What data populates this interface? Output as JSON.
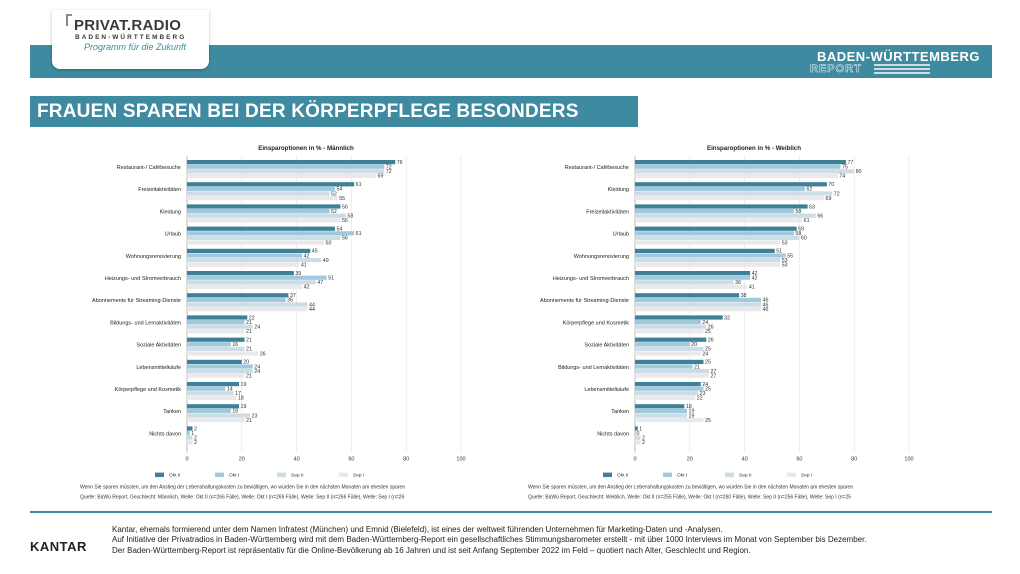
{
  "header": {
    "logo_title": "PRIVAT.RADIO",
    "logo_subtitle": "BADEN-WÜRTTEMBERG",
    "logo_tagline": "Programm für die Zukunft",
    "report_title": "BADEN-WÜRTTEMBERG",
    "report_word": "REPORT"
  },
  "headline": "FRAUEN SPAREN BEI DER KÖRPERPFLEGE BESONDERS",
  "colors": {
    "accent": "#3e8aa0",
    "series": [
      "#3d8097",
      "#9fcade",
      "#cddde6",
      "#e9e9ec"
    ]
  },
  "chart_data": [
    {
      "type": "bar",
      "orientation": "horizontal",
      "title": "Einsparoptionen in % - Männlich",
      "categories": [
        "Restaurant-/ Cafébesuche",
        "Freizeitaktivitäten",
        "Kleidung",
        "Urlaub",
        "Wohnungsrenovierung",
        "Heizungs- und Stromverbrauch",
        "Abonnements für Streaming-Dienste",
        "Bildungs- und Lernaktivitäten",
        "Soziale Aktivitäten",
        "Lebensmittelkäufe",
        "Körperpflege und Kosmetik",
        "Tanken",
        "Nichts davon"
      ],
      "series": [
        {
          "name": "Okt II",
          "values": [
            76,
            61,
            56,
            54,
            45,
            39,
            37,
            22,
            21,
            20,
            19,
            19,
            2
          ]
        },
        {
          "name": "Okt I",
          "values": [
            72,
            54,
            52,
            61,
            42,
            51,
            36,
            21,
            16,
            24,
            14,
            16,
            1
          ]
        },
        {
          "name": "Sep II",
          "values": [
            72,
            52,
            58,
            56,
            49,
            47,
            44,
            24,
            21,
            24,
            17,
            23,
            2
          ]
        },
        {
          "name": "Sep I",
          "values": [
            69,
            55,
            56,
            50,
            41,
            42,
            44,
            21,
            26,
            21,
            18,
            21,
            2
          ]
        }
      ],
      "xlim": [
        0,
        100
      ],
      "xticks": [
        "0",
        "20",
        "40",
        "60",
        "80",
        "100"
      ],
      "grid": true,
      "legend_position": "bottom",
      "note_question": "Wenn Sie sparen müssten, um den Anstieg der Lebenshaltungskosten zu bewältigen, wo würden Sie in den nächsten Monaten am ehesten sparen",
      "note_source": "Quelle: BaWü Report, Geschlecht: Männlich, Welle: Okt II (n=266 Fälle), Welle: Okt I (n=269 Fälle), Welle: Sep II (n=266 Fälle), Welle: Sep I (n=26"
    },
    {
      "type": "bar",
      "orientation": "horizontal",
      "title": "Einsparoptionen in % - Weiblich",
      "categories": [
        "Restaurant-/ Cafébesuche",
        "Kleidung",
        "Freizeitaktivitäten",
        "Urlaub",
        "Wohnungsrenovierung",
        "Heizungs- und Stromverbrauch",
        "Abonnements für Streaming-Dienste",
        "Körperpflege und Kosmetik",
        "Soziale Aktivitäten",
        "Bildungs- und Lernaktivitäten",
        "Lebensmittelkäufe",
        "Tanken",
        "Nichts davon"
      ],
      "series": [
        {
          "name": "Okt II",
          "values": [
            77,
            70,
            63,
            59,
            51,
            42,
            38,
            32,
            26,
            25,
            24,
            18,
            1
          ]
        },
        {
          "name": "Okt I",
          "values": [
            75,
            62,
            58,
            58,
            55,
            42,
            46,
            24,
            20,
            21,
            25,
            19,
            0
          ]
        },
        {
          "name": "Sep II",
          "values": [
            80,
            72,
            66,
            60,
            53,
            36,
            46,
            26,
            25,
            27,
            23,
            19,
            2
          ]
        },
        {
          "name": "Sep I",
          "values": [
            74,
            69,
            61,
            53,
            53,
            41,
            46,
            25,
            24,
            27,
            22,
            25,
            2
          ]
        }
      ],
      "xlim": [
        0,
        100
      ],
      "xticks": [
        "0",
        "20",
        "40",
        "60",
        "80",
        "100"
      ],
      "grid": true,
      "legend_position": "bottom",
      "note_question": "Wenn Sie sparen müssten, um den Anstieg der Lebenshaltungskosten zu bewältigen, wo würden Sie in den nächsten Monaten am ehesten sparen",
      "note_source": "Quelle: BaWü Report, Geschlecht: Weiblich, Welle: Okt II (n=255 Fälle), Welle: Okt I (n=260 Fälle), Welle: Sep II (n=256 Fälle), Welle: Sep I (n=25"
    }
  ],
  "footer": {
    "brand": "KANTAR",
    "line1": "Kantar, ehemals formierend unter dem Namen Infratest (München) und Emnid (Bielefeld), ist eines der weltweit führenden Unternehmen für Marketing-Daten und -Analysen.",
    "line2": "Auf Initiative der Privatradios in Baden-Württemberg wird mit dem Baden-Württemberg-Report ein gesellschaftliches Stimmungsbarometer erstellt - mit über 1000 Interviews im Monat von September bis Dezember.",
    "line3": "Der Baden-Württemberg-Report ist repräsentativ für die Online-Bevölkerung ab 16 Jahren und ist seit Anfang September 2022 im Feld – quotiert nach Alter, Geschlecht und Region."
  }
}
